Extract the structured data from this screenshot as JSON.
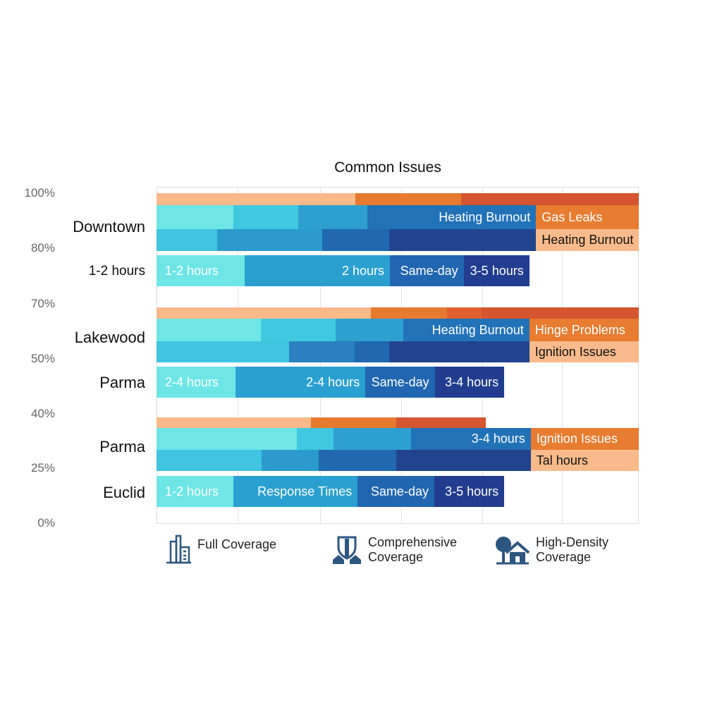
{
  "chart_data": {
    "type": "bar",
    "orientation": "horizontal-stacked",
    "title": "Common Issues",
    "yticks": [
      "100%",
      "80%",
      "70%",
      "50%",
      "40%",
      "25%",
      "0%"
    ],
    "categories": [
      "Downtown",
      "1-2 hours",
      "Lakewood",
      "Parma",
      "Parma",
      "Euclid"
    ],
    "xlim": [
      0,
      100
    ],
    "grid": true,
    "rows": [
      {
        "segments": [
          {
            "end": 41.2,
            "color": "#f9b98a"
          },
          {
            "end": 63.2,
            "color": "#e67a30"
          },
          {
            "end": 100,
            "color": "#d4552f"
          }
        ]
      },
      {
        "segments": [
          {
            "end": 15.9,
            "color": "#6ee6e6"
          },
          {
            "end": 29.4,
            "color": "#40c8e0"
          },
          {
            "end": 43.7,
            "color": "#2ea0d0"
          },
          {
            "end": 78.7,
            "color": "#2272b8",
            "label": "Heating Burnout"
          },
          {
            "end": 100,
            "color": "#e87c30",
            "label": "Gas Leaks"
          }
        ]
      },
      {
        "segments": [
          {
            "end": 12.6,
            "color": "#40c4e0"
          },
          {
            "end": 34.4,
            "color": "#2a9bcc"
          },
          {
            "end": 48.2,
            "color": "#2168b0"
          },
          {
            "end": 78.7,
            "color": "#22448f"
          },
          {
            "end": 100,
            "color": "#f9bb8c",
            "label": "Heating Burnout"
          }
        ]
      },
      {
        "segments": [
          {
            "end": 18.3,
            "color": "#6ee6e6",
            "label": "1-2 hours"
          },
          {
            "end": 48.4,
            "color": "#2aa0d0",
            "label": "2 hours"
          },
          {
            "end": 63.7,
            "color": "#2166b0",
            "label": "Same-day"
          },
          {
            "end": 77.3,
            "color": "#223d8f",
            "label": "3-5 hours"
          }
        ]
      },
      {
        "segments": [
          {
            "end": 44.4,
            "color": "#f9b98a"
          },
          {
            "end": 60.2,
            "color": "#e67a30"
          },
          {
            "end": 67.4,
            "color": "#e0602f"
          },
          {
            "end": 100,
            "color": "#d4552f"
          }
        ]
      },
      {
        "segments": [
          {
            "end": 21.6,
            "color": "#6ee6e6"
          },
          {
            "end": 37.1,
            "color": "#40c8e0"
          },
          {
            "end": 51.2,
            "color": "#2ea0d0"
          },
          {
            "end": 77.3,
            "color": "#2272b8",
            "label": "Heating Burnout"
          },
          {
            "end": 100,
            "color": "#e87c30",
            "label": "Hinge Problems"
          }
        ]
      },
      {
        "segments": [
          {
            "end": 27.5,
            "color": "#40c4e0"
          },
          {
            "end": 41.1,
            "color": "#2a80c0"
          },
          {
            "end": 48.2,
            "color": "#2168b0"
          },
          {
            "end": 77.3,
            "color": "#22448f"
          },
          {
            "end": 100,
            "color": "#f9bb8c",
            "label": "Ignition Issues"
          }
        ]
      },
      {
        "segments": [
          {
            "end": 16.4,
            "color": "#6ee6e6",
            "label": "2-4 hours"
          },
          {
            "end": 43.3,
            "color": "#2aa0d0",
            "label": "2-4 hours"
          },
          {
            "end": 57.7,
            "color": "#2166b0",
            "label": "Same-day"
          },
          {
            "end": 72.1,
            "color": "#223d8f",
            "label": "3-4 hours"
          }
        ]
      },
      {
        "segments": [
          {
            "end": 32.0,
            "color": "#f9b98a"
          },
          {
            "end": 49.7,
            "color": "#e67a30"
          },
          {
            "end": 68.3,
            "color": "#d4552f"
          }
        ]
      },
      {
        "segments": [
          {
            "end": 29.1,
            "color": "#6ee6e6"
          },
          {
            "end": 36.7,
            "color": "#40c8e0"
          },
          {
            "end": 52.8,
            "color": "#2ea0d0"
          },
          {
            "end": 77.6,
            "color": "#2272b8",
            "label": "3-4 hours"
          },
          {
            "end": 100,
            "color": "#e87c30",
            "label": "Ignition Issues"
          }
        ]
      },
      {
        "segments": [
          {
            "end": 21.8,
            "color": "#40c4e0"
          },
          {
            "end": 33.6,
            "color": "#2a9bcc"
          },
          {
            "end": 49.7,
            "color": "#2168b0"
          },
          {
            "end": 77.6,
            "color": "#22448f"
          },
          {
            "end": 100,
            "color": "#f9bb8c",
            "label": "Tal hours"
          }
        ]
      },
      {
        "segments": [
          {
            "end": 15.9,
            "color": "#6ee6e6",
            "label": "1-2 hours"
          },
          {
            "end": 41.7,
            "color": "#2aa0d0",
            "label": "Response Times"
          },
          {
            "end": 57.6,
            "color": "#2166b0",
            "label": "Same-day"
          },
          {
            "end": 72.1,
            "color": "#223d8f",
            "label": "3-5 hours"
          }
        ]
      }
    ],
    "legend": [
      {
        "label": "Full Coverage",
        "icon": "buildings-icon"
      },
      {
        "label": "Comprehensive Coverage",
        "icon": "shield-houses-icon"
      },
      {
        "label": "High-Density Coverage",
        "icon": "tree-house-icon"
      }
    ]
  }
}
